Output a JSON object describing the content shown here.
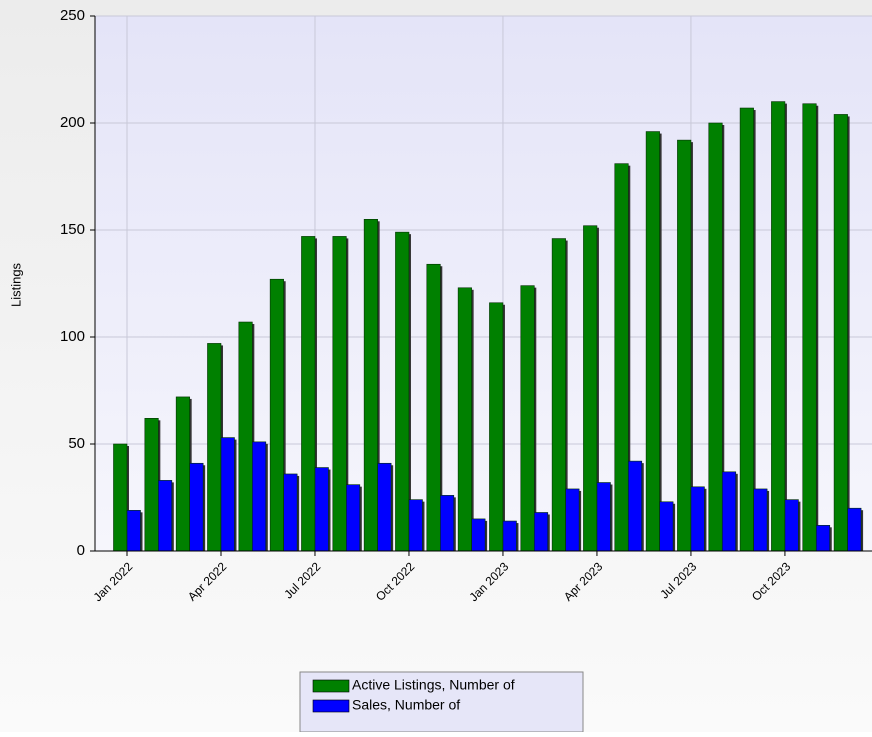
{
  "chart_data": {
    "type": "bar",
    "y_label": "Listings",
    "categories": [
      "Jan 2022",
      null,
      null,
      "Apr 2022",
      null,
      null,
      "Jul 2022",
      null,
      null,
      "Oct 2022",
      null,
      null,
      "Jan 2023",
      null,
      null,
      "Apr 2023",
      null,
      null,
      "Jul 2023",
      null,
      null,
      "Oct 2023",
      null,
      null
    ],
    "series": [
      {
        "name": "Active Listings, Number of",
        "color": "#008000",
        "values": [
          50,
          62,
          72,
          97,
          107,
          127,
          147,
          147,
          155,
          149,
          134,
          123,
          116,
          124,
          146,
          152,
          181,
          196,
          192,
          200,
          207,
          210,
          209,
          204
        ]
      },
      {
        "name": "Sales, Number of",
        "color": "#0000ff",
        "values": [
          19,
          33,
          41,
          53,
          51,
          36,
          39,
          31,
          41,
          24,
          26,
          15,
          14,
          18,
          29,
          32,
          42,
          23,
          30,
          37,
          29,
          24,
          12,
          20
        ]
      }
    ],
    "ylim": [
      0,
      250
    ],
    "yticks": [
      0,
      50,
      100,
      150,
      200,
      250
    ],
    "grid": true,
    "legend": "bottom"
  }
}
